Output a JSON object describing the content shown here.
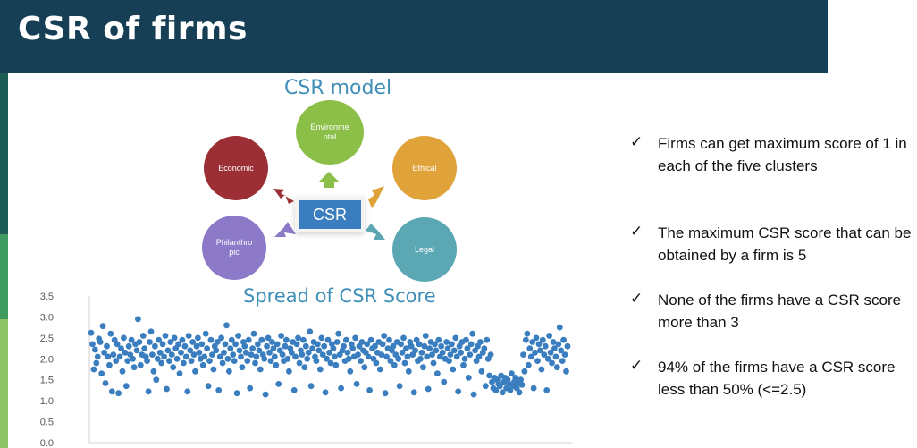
{
  "slide": {
    "title": "CSR of firms"
  },
  "csr_model": {
    "title": "CSR model",
    "center_label": "CSR",
    "clusters": [
      {
        "label": "Environme\nntal",
        "color": "#8cbf48"
      },
      {
        "label": "Economic",
        "color": "#9b2f35"
      },
      {
        "label": "Ethical",
        "color": "#e0a33a"
      },
      {
        "label": "Philanthro\npic",
        "color": "#8c79c8"
      },
      {
        "label": "Legal",
        "color": "#5ba8b4"
      }
    ]
  },
  "bullets": [
    {
      "check": "✓",
      "text": "Firms can get maximum score of 1 in each of the five clusters"
    },
    {
      "check": "✓",
      "text": "The maximum CSR score that can be obtained by a firm is 5"
    },
    {
      "check": "✓",
      "text": "None of the firms have a CSR score more than 3"
    },
    {
      "check": "✓",
      "text": "94% of the firms have a CSR score less than 50% (<=2.5)"
    }
  ],
  "chart_data": {
    "type": "scatter",
    "title": "Spread of CSR Score",
    "xlabel": "",
    "ylabel": "",
    "ylim": [
      0,
      3.5
    ],
    "yticks": [
      "0.0",
      "0.5",
      "1.0",
      "1.5",
      "2.0",
      "2.5",
      "3.0",
      "3.5"
    ],
    "grid": false,
    "point_color": "#3a7ebf",
    "series": [
      {
        "y": [
          2.62,
          2.35,
          1.75,
          2.22,
          1.9,
          2.05,
          2.48,
          2.4,
          1.65,
          2.78,
          2.15,
          1.42,
          2.3,
          2.05,
          1.85,
          2.6,
          1.22,
          2.1,
          2.45,
          1.95,
          2.35,
          1.18,
          2.05,
          2.25,
          1.7,
          2.5,
          2.15,
          1.35,
          1.95,
          2.3,
          2.1,
          2.45,
          2.0,
          1.8,
          2.35,
          2.2,
          2.95,
          2.4,
          1.85,
          2.1,
          2.55,
          2.25,
          2.05,
          1.95,
          1.22,
          2.4,
          2.65,
          2.1,
          1.7,
          2.3,
          1.5,
          2.0,
          2.45,
          2.15,
          1.9,
          2.35,
          2.05,
          2.55,
          1.28,
          2.2,
          1.95,
          2.4,
          2.1,
          1.8,
          2.5,
          2.25,
          2.0,
          2.35,
          1.65,
          2.15,
          2.45,
          1.9,
          2.3,
          2.05,
          1.22,
          2.55,
          2.2,
          1.95,
          2.4,
          2.1,
          1.7,
          2.3,
          2.5,
          2.15,
          2.0,
          2.35,
          1.85,
          2.05,
          2.6,
          2.25,
          1.35,
          1.95,
          2.45,
          2.1,
          1.75,
          2.3,
          2.2,
          2.4,
          1.25,
          2.05,
          2.5,
          1.9,
          2.15,
          2.35,
          2.8,
          2.0,
          1.7,
          2.25,
          2.45,
          2.1,
          1.95,
          2.35,
          1.18,
          2.55,
          2.2,
          2.05,
          1.8,
          2.4,
          2.3,
          2.15,
          1.95,
          2.45,
          1.3,
          2.1,
          2.25,
          2.6,
          1.9,
          2.05,
          2.35,
          2.2,
          1.75,
          2.45,
          2.1,
          2.0,
          1.15,
          2.3,
          2.5,
          2.15,
          1.95,
          2.4,
          2.25,
          2.05,
          1.85,
          2.35,
          1.4,
          2.2,
          2.55,
          2.1,
          1.95,
          2.3,
          2.45,
          2.0,
          1.7,
          2.25,
          2.15,
          2.4,
          1.25,
          2.05,
          2.35,
          2.5,
          1.9,
          2.2,
          2.1,
          2.45,
          1.8,
          2.3,
          2.0,
          2.15,
          2.65,
          1.35,
          2.25,
          2.4,
          2.05,
          1.95,
          2.35,
          2.2,
          1.75,
          2.5,
          2.1,
          2.3,
          1.2,
          2.0,
          2.45,
          2.15,
          1.9,
          2.35,
          2.25,
          2.05,
          1.85,
          2.4,
          2.6,
          2.1,
          1.3,
          2.2,
          2.3,
          1.95,
          2.45,
          2.15,
          2.0,
          1.7,
          2.35,
          2.25,
          2.05,
          2.5,
          1.4,
          2.1,
          2.3,
          1.95,
          2.4,
          2.2,
          1.8,
          2.15,
          2.35,
          2.05,
          1.25,
          2.45,
          2.25,
          2.0,
          2.3,
          1.9,
          2.15,
          2.4,
          1.75,
          2.1,
          2.35,
          2.55,
          1.18,
          2.05,
          2.25,
          2.45,
          1.95,
          2.2,
          2.3,
          1.85,
          2.1,
          2.4,
          2.0,
          1.35,
          2.35,
          2.15,
          2.5,
          1.9,
          2.25,
          2.05,
          1.7,
          2.4,
          2.3,
          2.1,
          1.2,
          2.2,
          2.45,
          1.95,
          2.35,
          2.0,
          2.15,
          1.8,
          2.3,
          2.55,
          2.05,
          1.28,
          2.25,
          2.4,
          2.1,
          1.9,
          2.35,
          2.2,
          1.65,
          2.45,
          2.05,
          2.3,
          2.15,
          1.45,
          2.0,
          2.4,
          2.25,
          1.95,
          2.1,
          2.35,
          1.75,
          2.2,
          2.5,
          2.05,
          1.22,
          2.3,
          2.15,
          2.4,
          1.85,
          2.0,
          2.45,
          2.25,
          1.55,
          2.1,
          2.35,
          2.6,
          1.15,
          2.2,
          1.95,
          2.3,
          2.05,
          2.4,
          1.7,
          2.15,
          2.25,
          1.35,
          2.45,
          2.0,
          1.6,
          2.1,
          1.45,
          1.3,
          1.55,
          1.25,
          1.5,
          1.4,
          1.35,
          1.6,
          1.2,
          1.45,
          1.55,
          1.3,
          1.5,
          1.4,
          1.25,
          1.65,
          1.35,
          1.45,
          1.55,
          1.3,
          1.42,
          1.2,
          1.5,
          1.38,
          2.1,
          1.7,
          2.45,
          2.6,
          1.85,
          2.25,
          2.05,
          2.4,
          1.3,
          2.15,
          2.5,
          1.95,
          2.35,
          2.2,
          1.75,
          2.45,
          2.1,
          2.3,
          1.25,
          2.0,
          2.55,
          2.15,
          1.9,
          2.4,
          2.25,
          2.05,
          1.8,
          2.35,
          2.75,
          2.2,
          1.95,
          2.45,
          2.1,
          1.7,
          2.3
        ]
      }
    ]
  }
}
